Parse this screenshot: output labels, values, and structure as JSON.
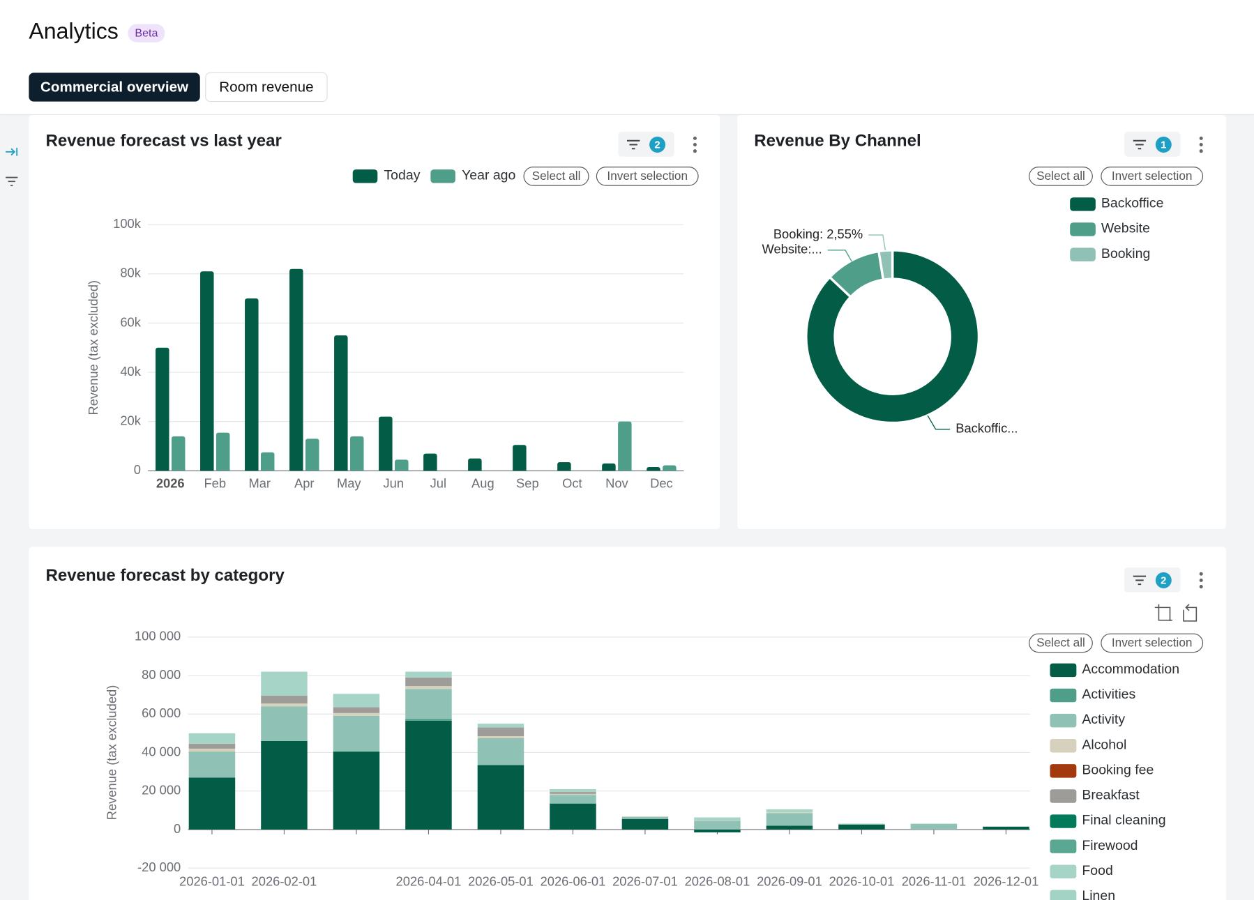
{
  "header": {
    "title": "Analytics",
    "badge": "Beta"
  },
  "tabs": [
    "Commercial overview",
    "Room revenue"
  ],
  "panels": [
    {
      "title": "Revenue forecast vs last year",
      "filter_count": 2,
      "select_all": "Select all",
      "invert_selection": "Invert selection",
      "chart_data": {
        "type": "bar",
        "y_label": "Revenue (tax excluded)",
        "categories": [
          "2026",
          "Feb",
          "Mar",
          "Apr",
          "May",
          "Jun",
          "Jul",
          "Aug",
          "Sep",
          "Oct",
          "Nov",
          "Dec"
        ],
        "series": [
          {
            "name": "Today",
            "color": "#035c45",
            "values": [
              50000,
              81000,
              70000,
              82000,
              55000,
              22000,
              7000,
              5000,
              10500,
              3500,
              3000,
              1500
            ]
          },
          {
            "name": "Year ago",
            "color": "#4f9e89",
            "values": [
              14000,
              15500,
              7500,
              13000,
              14000,
              4500,
              0,
              0,
              0,
              0,
              20000,
              2200
            ]
          }
        ],
        "ylim": [
          0,
          100000
        ],
        "yticks": [
          0,
          {
            "value": 20000,
            "label": "20k"
          },
          {
            "value": 40000,
            "label": "40k"
          },
          {
            "value": 60000,
            "label": "60k"
          },
          {
            "value": 80000,
            "label": "80k"
          },
          {
            "value": 100000,
            "label": "100k"
          }
        ],
        "grid": true
      }
    },
    {
      "title": "Revenue By Channel",
      "filter_count": 1,
      "select_all": "Select all",
      "invert_selection": "Invert selection",
      "chart_data": {
        "type": "pie",
        "donut": true,
        "categories": [
          "Backoffice",
          "Website",
          "Booking"
        ],
        "values": [
          87.05,
          10.4,
          2.55
        ],
        "value_labels": [
          "Backoffic...",
          "Website:...",
          "Booking: 2,55%"
        ],
        "colors": [
          "#035c45",
          "#4f9e89",
          "#8fc2b4"
        ]
      }
    },
    {
      "title": "Revenue forecast by category",
      "filter_count": 2,
      "select_all": "Select all",
      "invert_selection": "Invert selection",
      "chart_data": {
        "type": "bar",
        "stacked": true,
        "y_label": "Revenue (tax excluded)",
        "categories": [
          "2026-01-01",
          "2026-02-01",
          null,
          "2026-04-01",
          "2026-05-01",
          "2026-06-01",
          "2026-07-01",
          "2026-08-01",
          "2026-09-01",
          "2026-10-01",
          "2026-11-01",
          "2026-12-01"
        ],
        "series": [
          {
            "name": "Accommodation",
            "color": "#035c45",
            "values": [
              27000,
              46000,
              40500,
              56500,
              33500,
              13500,
              5500,
              -1500,
              2000,
              2500,
              0,
              1500
            ]
          },
          {
            "name": "Activities",
            "color": "#4f9e89",
            "values": [
              0,
              0,
              0,
              1000,
              0,
              0,
              0,
              0,
              0,
              0,
              0,
              0
            ]
          },
          {
            "name": "Activity",
            "color": "#8fc2b4",
            "values": [
              13500,
              18000,
              18500,
              15500,
              14000,
              4500,
              1000,
              4500,
              6500,
              500,
              3000,
              0
            ]
          },
          {
            "name": "Alcohol",
            "color": "#d5d1bd",
            "values": [
              1500,
              1500,
              1500,
              1500,
              1000,
              500,
              300,
              300,
              500,
              0,
              0,
              0
            ]
          },
          {
            "name": "Booking fee",
            "color": "#a33a0e",
            "values": [
              0,
              0,
              0,
              0,
              0,
              0,
              0,
              0,
              0,
              0,
              0,
              0
            ]
          },
          {
            "name": "Breakfast",
            "color": "#9e9c98",
            "values": [
              2500,
              4000,
              3000,
              4500,
              4500,
              1000,
              0,
              0,
              0,
              0,
              0,
              0
            ]
          },
          {
            "name": "Final cleaning",
            "color": "#037a5a",
            "values": [
              0,
              0,
              0,
              0,
              0,
              0,
              0,
              0,
              0,
              0,
              0,
              0
            ]
          },
          {
            "name": "Firewood",
            "color": "#5aa892",
            "values": [
              0,
              0,
              0,
              0,
              0,
              0,
              0,
              0,
              0,
              0,
              0,
              0
            ]
          },
          {
            "name": "Food",
            "color": "#a6d4c7",
            "values": [
              5500,
              12500,
              7000,
              3000,
              2000,
              1500,
              0,
              1500,
              1500,
              0,
              0,
              0
            ]
          },
          {
            "name": "Linen",
            "color": "#a3d3c4",
            "values": [
              0,
              0,
              0,
              0,
              0,
              0,
              0,
              0,
              0,
              0,
              0,
              0
            ]
          }
        ],
        "ylim": [
          -20000,
          100000
        ],
        "yticks": [
          {
            "value": -20000,
            "label": "-20 000"
          },
          0,
          {
            "value": 20000,
            "label": "20 000"
          },
          {
            "value": 40000,
            "label": "40 000"
          },
          {
            "value": 60000,
            "label": "60 000"
          },
          {
            "value": 80000,
            "label": "80 000"
          },
          {
            "value": 100000,
            "label": "100 000"
          }
        ],
        "grid": true
      }
    }
  ]
}
